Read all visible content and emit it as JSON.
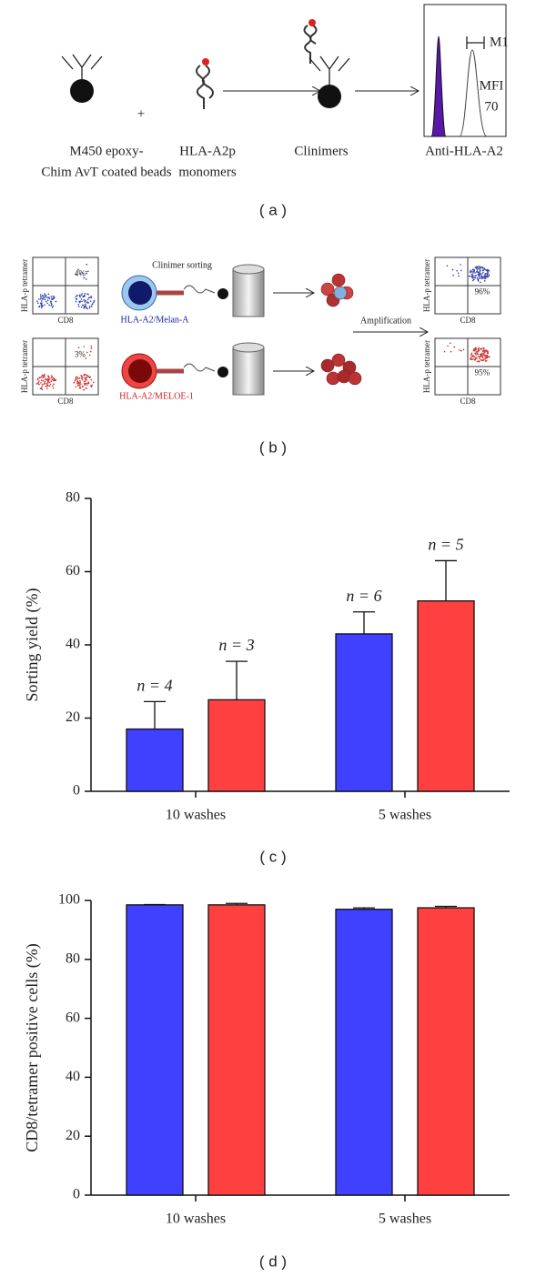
{
  "panel_a": {
    "label": "( a )",
    "beads_label": [
      "M450 epoxy-",
      "Chim AvT coated beads"
    ],
    "plus": "+",
    "monomers_label": [
      "HLA-A2p",
      "monomers"
    ],
    "clinimers_label": "Clinimers",
    "histogram": {
      "gate": "M1",
      "mfi_label": "MFI",
      "mfi_value": 70,
      "x_label": "Anti-HLA-A2"
    }
  },
  "panel_b": {
    "label": "( b )",
    "title": "Clinimer sorting",
    "amplification": "Amplification",
    "antigens": [
      "HLA-A2/Melan-A",
      "HLA-A2/MELOE-1"
    ],
    "plots": [
      {
        "y_label": "HLA-p tetramer",
        "x_label": "CD8",
        "percent": "4%"
      },
      {
        "y_label": "HLA-p tetramer",
        "x_label": "CD8",
        "percent": "3%"
      },
      {
        "y_label": "HLA-p tetramer",
        "x_label": "CD8",
        "percent": "96%"
      },
      {
        "y_label": "HLA-p tetramer",
        "x_label": "CD8",
        "percent": "95%"
      }
    ]
  },
  "chart_data": [
    {
      "type": "bar",
      "panel_label": "( c )",
      "y_label": "Sorting yield (%)",
      "categories": [
        "10 washes",
        "5 washes"
      ],
      "series": [
        {
          "color": "#4040ff",
          "values": [
            17,
            43
          ],
          "errors": [
            7.5,
            6
          ]
        },
        {
          "color": "#ff4040",
          "values": [
            25,
            52
          ],
          "errors": [
            10.5,
            11
          ]
        }
      ],
      "annotations": [
        [
          "n = 4",
          "n = 6"
        ],
        [
          "n = 3",
          "n = 5"
        ]
      ],
      "ylim": [
        0,
        80
      ],
      "yticks": [
        0,
        20,
        40,
        60,
        80
      ]
    },
    {
      "type": "bar",
      "panel_label": "( d )",
      "y_label": "CD8/tetramer positive cells (%)",
      "categories": [
        "10 washes",
        "5 washes"
      ],
      "series": [
        {
          "color": "#4040ff",
          "values": [
            98.5,
            97
          ],
          "errors": [
            0.1,
            0.5
          ]
        },
        {
          "color": "#ff4040",
          "values": [
            98.5,
            97.5
          ],
          "errors": [
            0.5,
            0.5
          ]
        }
      ],
      "ylim": [
        0,
        100
      ],
      "yticks": [
        0,
        20,
        40,
        60,
        80,
        100
      ]
    }
  ]
}
